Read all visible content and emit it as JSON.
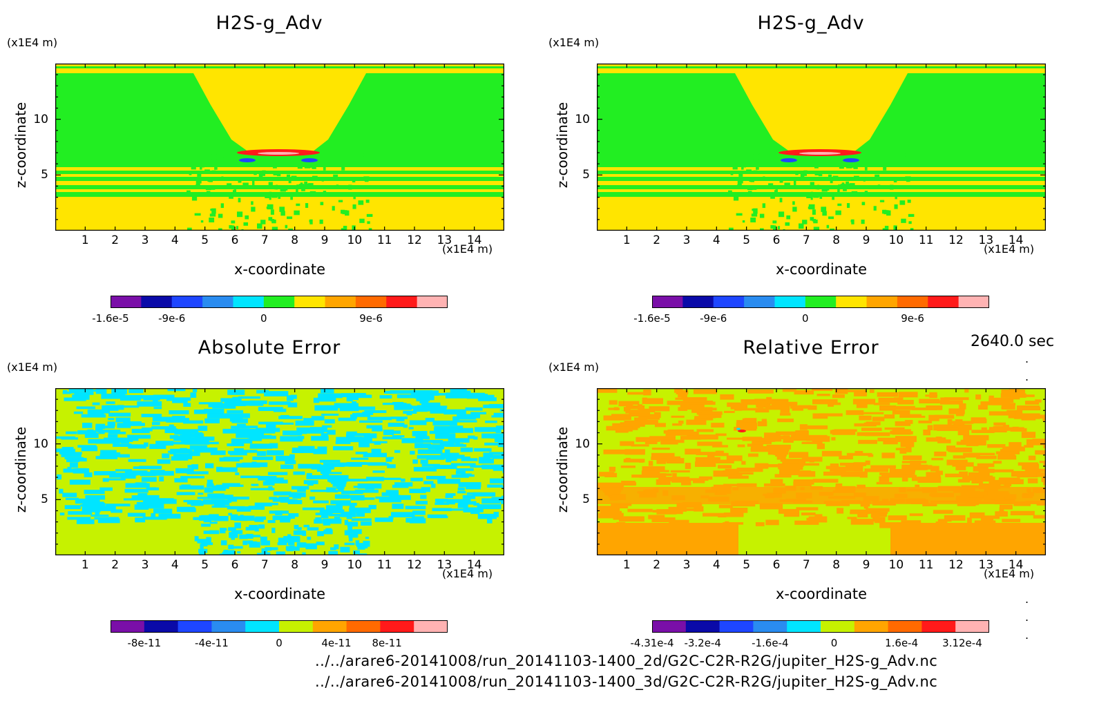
{
  "time_label": "2640.0 sec",
  "file_paths": [
    "../../arare6-20141008/run_20141103-1400_2d/G2C-C2R-R2G/jupiter_H2S-g_Adv.nc",
    "../../arare6-20141008/run_20141103-1400_3d/G2C-C2R-R2G/jupiter_H2S-g_Adv.nc"
  ],
  "colors": {
    "purple": "#7a0fa8",
    "navy": "#0a0aa8",
    "blue": "#1e46ff",
    "midblue": "#2a8cf0",
    "cyan": "#00e5ff",
    "green": "#22ee22",
    "lime": "#c6f200",
    "yellow": "#ffe500",
    "orange": "#ffa500",
    "darkorange": "#ff6a00",
    "red": "#ff1a1a",
    "pink": "#ffb3b3"
  },
  "chart_data": [
    {
      "type": "heatmap",
      "title": "H2S-g_Adv",
      "xlabel": "x-coordinate",
      "ylabel": "z-coordinate",
      "x_unit": "(x1E4 m)",
      "y_unit": "(x1E4 m)",
      "xlim": [
        0,
        15
      ],
      "ylim": [
        0,
        15
      ],
      "x_ticks": [
        "1",
        "2",
        "3",
        "4",
        "5",
        "6",
        "7",
        "8",
        "9",
        "10",
        "11",
        "12",
        "13",
        "14"
      ],
      "y_ticks": [
        "5",
        "10"
      ],
      "colorbar": {
        "colors": [
          "#7a0fa8",
          "#0a0aa8",
          "#1e46ff",
          "#2a8cf0",
          "#00e5ff",
          "#22ee22",
          "#ffe500",
          "#ffa500",
          "#ff6a00",
          "#ff1a1a",
          "#ffb3b3"
        ],
        "tick_labels": [
          "-1.6e-5",
          "-9e-6",
          "0",
          "9e-6"
        ],
        "tick_index": [
          0,
          2,
          5,
          8.5
        ]
      }
    },
    {
      "type": "heatmap",
      "title": "H2S-g_Adv",
      "xlabel": "x-coordinate",
      "ylabel": "z-coordinate",
      "x_unit": "(x1E4 m)",
      "y_unit": "(x1E4 m)",
      "xlim": [
        0,
        15
      ],
      "ylim": [
        0,
        15
      ],
      "x_ticks": [
        "1",
        "2",
        "3",
        "4",
        "5",
        "6",
        "7",
        "8",
        "9",
        "10",
        "11",
        "12",
        "13",
        "14"
      ],
      "y_ticks": [
        "5",
        "10"
      ],
      "colorbar": {
        "colors": [
          "#7a0fa8",
          "#0a0aa8",
          "#1e46ff",
          "#2a8cf0",
          "#00e5ff",
          "#22ee22",
          "#ffe500",
          "#ffa500",
          "#ff6a00",
          "#ff1a1a",
          "#ffb3b3"
        ],
        "tick_labels": [
          "-1.6e-5",
          "-9e-6",
          "0",
          "9e-6"
        ],
        "tick_index": [
          0,
          2,
          5,
          8.5
        ]
      }
    },
    {
      "type": "heatmap",
      "title": "Absolute Error",
      "xlabel": "x-coordinate",
      "ylabel": "z-coordinate",
      "x_unit": "(x1E4 m)",
      "y_unit": "(x1E4 m)",
      "xlim": [
        0,
        15
      ],
      "ylim": [
        0,
        15
      ],
      "x_ticks": [
        "1",
        "2",
        "3",
        "4",
        "5",
        "6",
        "7",
        "8",
        "9",
        "10",
        "11",
        "12",
        "13",
        "14"
      ],
      "y_ticks": [
        "5",
        "10"
      ],
      "colorbar": {
        "colors": [
          "#7a0fa8",
          "#0a0aa8",
          "#1e46ff",
          "#2a8cf0",
          "#00e5ff",
          "#c6f200",
          "#ffa500",
          "#ff6a00",
          "#ff1a1a",
          "#ffb3b3"
        ],
        "tick_labels": [
          "-8e-11",
          "-4e-11",
          "0",
          "4e-11",
          "8e-11"
        ],
        "tick_index": [
          1,
          3,
          5,
          6.7,
          8.2
        ]
      }
    },
    {
      "type": "heatmap",
      "title": "Relative Error",
      "xlabel": "x-coordinate",
      "ylabel": "z-coordinate",
      "x_unit": "(x1E4 m)",
      "y_unit": "(x1E4 m)",
      "xlim": [
        0,
        15
      ],
      "ylim": [
        0,
        15
      ],
      "x_ticks": [
        "1",
        "2",
        "3",
        "4",
        "5",
        "6",
        "7",
        "8",
        "9",
        "10",
        "11",
        "12",
        "13",
        "14"
      ],
      "y_ticks": [
        "5",
        "10"
      ],
      "colorbar": {
        "colors": [
          "#7a0fa8",
          "#0a0aa8",
          "#1e46ff",
          "#2a8cf0",
          "#00e5ff",
          "#c6f200",
          "#ffa500",
          "#ff6a00",
          "#ff1a1a",
          "#ffb3b3"
        ],
        "tick_labels": [
          "-4.31e-4",
          "-3.2e-4",
          "-1.6e-4",
          "0",
          "1.6e-4",
          "3.12e-4"
        ],
        "tick_index": [
          0,
          1.5,
          3.5,
          5.4,
          7.4,
          9.2
        ]
      }
    }
  ]
}
